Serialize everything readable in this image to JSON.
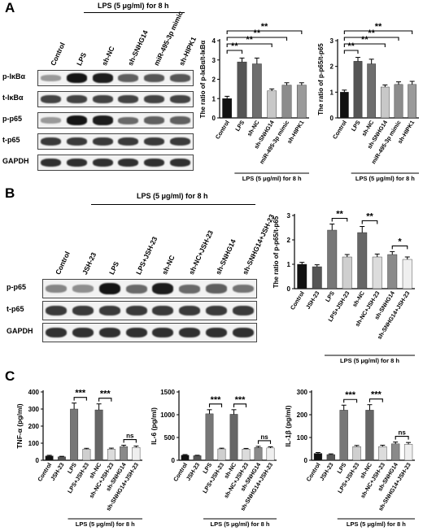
{
  "panel_labels": {
    "a": "A",
    "b": "B",
    "c": "C"
  },
  "treatment_label": "LPS (5 μg/ml) for 8 h",
  "panel_a": {
    "lanes": [
      "Control",
      "LPS",
      "sh-NC",
      "sh-SNHG14",
      "miR-495-3p mimic",
      "sh-HIPK1"
    ],
    "blot_rows": [
      {
        "label": "p-IκBα",
        "intensity": [
          0.25,
          0.95,
          0.9,
          0.55,
          0.6,
          0.6
        ]
      },
      {
        "label": "t-IκBα",
        "intensity": [
          0.7,
          0.7,
          0.7,
          0.7,
          0.7,
          0.7
        ]
      },
      {
        "label": "p-p65",
        "intensity": [
          0.25,
          0.95,
          0.9,
          0.5,
          0.55,
          0.55
        ]
      },
      {
        "label": "t-p65",
        "intensity": [
          0.75,
          0.75,
          0.75,
          0.75,
          0.75,
          0.75
        ]
      },
      {
        "label": "GAPDH",
        "intensity": [
          0.8,
          0.8,
          0.8,
          0.8,
          0.8,
          0.8
        ]
      }
    ]
  },
  "panel_b": {
    "lanes": [
      "Control",
      "JSH-23",
      "LPS",
      "LPS+JSH-23",
      "sh-NC",
      "sh-NC+JSH-23",
      "sh-SNHG14",
      "sh-SNHG14+JSH-23"
    ],
    "blot_rows": [
      {
        "label": "p-p65",
        "intensity": [
          0.35,
          0.3,
          0.95,
          0.5,
          0.9,
          0.5,
          0.55,
          0.45
        ]
      },
      {
        "label": "t-p65",
        "intensity": [
          0.75,
          0.75,
          0.75,
          0.75,
          0.75,
          0.75,
          0.75,
          0.75
        ]
      },
      {
        "label": "GAPDH",
        "intensity": [
          0.8,
          0.8,
          0.8,
          0.8,
          0.8,
          0.8,
          0.8,
          0.8
        ]
      }
    ]
  },
  "chart_data": [
    {
      "type": "bar",
      "ylabel": "The ratio of p-IκBα/t-IκBα",
      "categories": [
        "Control",
        "LPS",
        "sh-NC",
        "sh-SNHG14",
        "miR-495-3p mimic",
        "sh-HIPK1"
      ],
      "values": [
        1.0,
        2.9,
        2.8,
        1.4,
        1.7,
        1.7
      ],
      "errors": [
        0.12,
        0.2,
        0.3,
        0.1,
        0.12,
        0.12
      ],
      "ylim": [
        0,
        4
      ],
      "yticks": [
        0,
        1,
        2,
        3,
        4
      ],
      "colors": [
        "#111111",
        "#555555",
        "#6e6e6e",
        "#c8c8c8",
        "#8c8c8c",
        "#9a9a9a"
      ],
      "group_label": "LPS (5 μg/ml) for 8 h",
      "sig": [
        {
          "from": 0,
          "to": 1,
          "label": "**"
        },
        {
          "from": 0,
          "to": 3,
          "label": "**"
        },
        {
          "from": 0,
          "to": 4,
          "label": "**"
        },
        {
          "from": 0,
          "to": 5,
          "label": "**"
        }
      ]
    },
    {
      "type": "bar",
      "ylabel": "The ratio of p-p65/t-p65",
      "categories": [
        "Control",
        "LPS",
        "sh-NC",
        "sh-SNHG14",
        "miR-495-3p mimic",
        "sh-HIPK1"
      ],
      "values": [
        1.0,
        2.2,
        2.1,
        1.2,
        1.3,
        1.3
      ],
      "errors": [
        0.08,
        0.15,
        0.18,
        0.08,
        0.1,
        0.12
      ],
      "ylim": [
        0,
        3
      ],
      "yticks": [
        0,
        1,
        2,
        3
      ],
      "colors": [
        "#111111",
        "#555555",
        "#6e6e6e",
        "#c8c8c8",
        "#8c8c8c",
        "#9a9a9a"
      ],
      "group_label": "LPS (5 μg/ml) for 8 h",
      "sig": [
        {
          "from": 0,
          "to": 1,
          "label": "**"
        },
        {
          "from": 0,
          "to": 3,
          "label": "**"
        },
        {
          "from": 0,
          "to": 4,
          "label": "**"
        },
        {
          "from": 0,
          "to": 5,
          "label": "**"
        }
      ]
    },
    {
      "type": "bar",
      "ylabel": "The ratio of p-p65/t-p65",
      "categories": [
        "Control",
        "JSH-23",
        "LPS",
        "LPS+JSH-23",
        "sh-NC",
        "sh-NC+JSH-23",
        "sh-SNHG14",
        "sh-SNHG14+JSH-23"
      ],
      "values": [
        1.0,
        0.9,
        2.4,
        1.3,
        2.3,
        1.3,
        1.4,
        1.2
      ],
      "errors": [
        0.08,
        0.08,
        0.25,
        0.1,
        0.25,
        0.12,
        0.12,
        0.1
      ],
      "ylim": [
        0,
        3
      ],
      "yticks": [
        0,
        1,
        2,
        3
      ],
      "colors": [
        "#111111",
        "#555555",
        "#777777",
        "#cfcfcf",
        "#666666",
        "#dcdcdc",
        "#8a8a8a",
        "#efefef"
      ],
      "group_label": "LPS (5 μg/ml) for 8 h",
      "sig": [
        {
          "from": 2,
          "to": 3,
          "label": "**"
        },
        {
          "from": 4,
          "to": 5,
          "label": "**"
        },
        {
          "from": 6,
          "to": 7,
          "label": "*"
        }
      ]
    },
    {
      "type": "bar",
      "ylabel": "TNF-α (pg/ml)",
      "categories": [
        "Control",
        "JSH-23",
        "LPS",
        "LPS+JSH-23",
        "sh-NC",
        "sh-NC+JSH-23",
        "sh-SNHG14",
        "sh-SNHG14+JSH-23"
      ],
      "values": [
        25,
        20,
        300,
        65,
        295,
        65,
        80,
        75
      ],
      "errors": [
        4,
        3,
        35,
        5,
        35,
        6,
        8,
        8
      ],
      "ylim": [
        0,
        400
      ],
      "yticks": [
        0,
        100,
        200,
        300,
        400
      ],
      "colors": [
        "#111111",
        "#555555",
        "#777777",
        "#cfcfcf",
        "#666666",
        "#dcdcdc",
        "#8a8a8a",
        "#efefef"
      ],
      "group_label": "LPS (5 μg/ml) for 8 h",
      "sig": [
        {
          "from": 2,
          "to": 3,
          "label": "***"
        },
        {
          "from": 4,
          "to": 5,
          "label": "***"
        },
        {
          "from": 6,
          "to": 7,
          "label": "ns"
        }
      ]
    },
    {
      "type": "bar",
      "ylabel": "IL-6 (pg/ml)",
      "categories": [
        "Control",
        "JSH-23",
        "LPS",
        "LPS+JSH-23",
        "sh-NC",
        "sh-NC+JSH-23",
        "sh-SNHG14",
        "sh-SNHG14+JSH-23"
      ],
      "values": [
        110,
        100,
        1020,
        250,
        1010,
        245,
        280,
        270
      ],
      "errors": [
        15,
        10,
        90,
        15,
        100,
        15,
        25,
        25
      ],
      "ylim": [
        0,
        1500
      ],
      "yticks": [
        0,
        500,
        1000,
        1500
      ],
      "colors": [
        "#111111",
        "#555555",
        "#777777",
        "#cfcfcf",
        "#666666",
        "#dcdcdc",
        "#8a8a8a",
        "#efefef"
      ],
      "group_label": "LPS (5 μg/ml) for 8 h",
      "sig": [
        {
          "from": 2,
          "to": 3,
          "label": "***"
        },
        {
          "from": 4,
          "to": 5,
          "label": "***"
        },
        {
          "from": 6,
          "to": 7,
          "label": "ns"
        }
      ]
    },
    {
      "type": "bar",
      "ylabel": "IL-1β (pg/ml)",
      "categories": [
        "Control",
        "JSH-23",
        "LPS",
        "LPS+JSH-23",
        "sh-NC",
        "sh-NC+JSH-23",
        "sh-SNHG14",
        "sh-SNHG14+JSH-23"
      ],
      "values": [
        30,
        25,
        220,
        60,
        220,
        60,
        72,
        70
      ],
      "errors": [
        4,
        3,
        22,
        5,
        24,
        6,
        8,
        8
      ],
      "ylim": [
        0,
        300
      ],
      "yticks": [
        0,
        100,
        200,
        300
      ],
      "colors": [
        "#111111",
        "#555555",
        "#777777",
        "#cfcfcf",
        "#666666",
        "#dcdcdc",
        "#8a8a8a",
        "#efefef"
      ],
      "group_label": "LPS (5 μg/ml) for 8 h",
      "sig": [
        {
          "from": 2,
          "to": 3,
          "label": "***"
        },
        {
          "from": 4,
          "to": 5,
          "label": "***"
        },
        {
          "from": 6,
          "to": 7,
          "label": "ns"
        }
      ]
    }
  ]
}
